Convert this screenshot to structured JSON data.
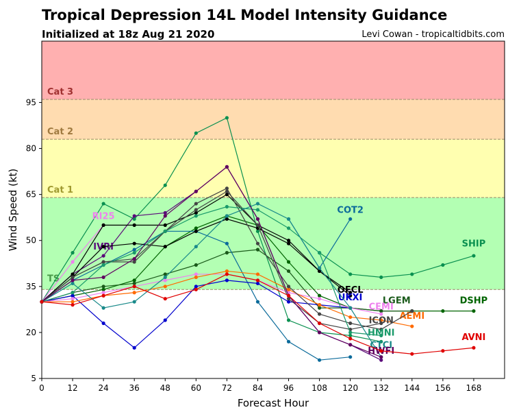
{
  "header": {
    "title": "Tropical Depression 14L Model Intensity Guidance",
    "subtitle": "Initialized at 18z Aug 21 2020",
    "credit": "Levi Cowan - tropicaltidbits.com"
  },
  "chart_data": {
    "type": "line",
    "xlabel": "Forecast Hour",
    "ylabel": "Wind Speed (kt)",
    "xlim": [
      0,
      180
    ],
    "ylim": [
      5,
      115
    ],
    "xticks": [
      0,
      12,
      24,
      36,
      48,
      60,
      72,
      84,
      96,
      108,
      120,
      132,
      144,
      156,
      168
    ],
    "yticks": [
      5,
      20,
      35,
      50,
      65,
      80,
      95
    ],
    "bands": [
      {
        "label": "",
        "from": 5,
        "to": 34,
        "color": "#ffffff",
        "label_color": "#000000"
      },
      {
        "label": "TS",
        "from": 34,
        "to": 64,
        "color": "#b3ffb3",
        "label_color": "#4a9a4a"
      },
      {
        "label": "Cat 1",
        "from": 64,
        "to": 83,
        "color": "#ffffb0",
        "label_color": "#a09a30"
      },
      {
        "label": "Cat 2",
        "from": 83,
        "to": 96,
        "color": "#ffdcb0",
        "label_color": "#a07a40"
      },
      {
        "label": "Cat 3",
        "from": 96,
        "to": 115,
        "color": "#ffb0b0",
        "label_color": "#a03030"
      }
    ],
    "series": [
      {
        "name": "SHIP",
        "color": "#0a9050",
        "x": [
          0,
          12,
          24,
          36,
          48,
          60,
          72,
          84,
          96,
          108,
          120,
          132,
          144,
          156,
          168
        ],
        "y": [
          30,
          46,
          62,
          57,
          68,
          85,
          90,
          53,
          24,
          20,
          19,
          17,
          null,
          null,
          null
        ],
        "label": {
          "x": 168,
          "y": 48
        }
      },
      {
        "name": "SHIP",
        "color": "#0a9050",
        "x": [
          108,
          120,
          132,
          144,
          156,
          168
        ],
        "y": [
          46,
          39,
          38,
          39,
          42,
          45
        ],
        "label": null
      },
      {
        "name": "DSHP",
        "color": "#006400",
        "x": [
          0,
          12,
          24,
          36,
          48,
          60,
          72,
          84,
          96,
          108,
          120,
          132,
          144,
          156,
          168
        ],
        "y": [
          30,
          32,
          34,
          37,
          48,
          54,
          58,
          55,
          43,
          32,
          28,
          27,
          27,
          27,
          27
        ],
        "label": {
          "x": 168,
          "y": 29.5
        }
      },
      {
        "name": "LGEM",
        "color": "#1a5a1a",
        "x": [
          0,
          12,
          24,
          36,
          48,
          60,
          72,
          84,
          96,
          108,
          120,
          132,
          144
        ],
        "y": [
          30,
          33,
          35,
          36,
          39,
          42,
          46,
          47,
          40,
          28,
          28,
          27,
          27
        ],
        "label": {
          "x": 138,
          "y": 29.5
        }
      },
      {
        "name": "COT2",
        "color": "#0a6a9a",
        "x": [
          0,
          12,
          24,
          36,
          48,
          60,
          72,
          84,
          96,
          108,
          120
        ],
        "y": [
          30,
          37,
          42,
          47,
          53,
          53,
          49,
          30,
          17,
          11,
          12
        ],
        "label": {
          "x": 120,
          "y": 59
        }
      },
      {
        "name": "COT2",
        "color": "#0a6a9a",
        "x": [
          96,
          108,
          120
        ],
        "y": [
          57,
          41,
          57
        ],
        "label": null
      },
      {
        "name": "RI25",
        "color": "#ee82ee",
        "x": [
          0,
          12,
          24
        ],
        "y": [
          30,
          43,
          55
        ],
        "label": {
          "x": 24,
          "y": 57
        }
      },
      {
        "name": "IVRI",
        "color": "#5a0a7a",
        "x": [
          0,
          12,
          24,
          36,
          48,
          60,
          72,
          84,
          96,
          108,
          120,
          132
        ],
        "y": [
          30,
          39,
          45,
          58,
          59,
          66,
          74,
          57,
          32,
          20,
          16,
          11
        ],
        "label": {
          "x": 24,
          "y": 47
        }
      },
      {
        "name": "OFCL",
        "color": "#000000",
        "x": [
          0,
          12,
          24,
          36,
          48,
          60,
          72,
          84,
          96,
          108,
          120
        ],
        "y": [
          30,
          39,
          55,
          55,
          55,
          59,
          65,
          55,
          50,
          40,
          33
        ],
        "label": {
          "x": 120,
          "y": 33
        }
      },
      {
        "name": "OFCL",
        "color": "#000000",
        "x": [
          0,
          12,
          24,
          36,
          48,
          60,
          72,
          84,
          96,
          108,
          120
        ],
        "y": [
          30,
          38,
          48,
          49,
          48,
          53,
          57,
          54,
          49,
          40,
          32
        ],
        "label": null
      },
      {
        "name": "UKXI",
        "color": "#0000cd",
        "x": [
          0,
          12,
          24,
          36,
          48,
          60,
          72,
          84,
          96,
          108,
          120
        ],
        "y": [
          30,
          32,
          23,
          15,
          24,
          35,
          37,
          36,
          30,
          29,
          28
        ],
        "label": {
          "x": 120,
          "y": 30.5
        }
      },
      {
        "name": "CEMI",
        "color": "#ee82ee",
        "x": [
          0,
          12,
          24,
          36,
          48,
          60,
          72,
          84,
          96,
          108,
          120,
          132
        ],
        "y": [
          30,
          31,
          33,
          35,
          37,
          39,
          39,
          37,
          33,
          31,
          28,
          26
        ],
        "label": {
          "x": 132,
          "y": 27.5
        }
      },
      {
        "name": "AEMI",
        "color": "#ff6a00",
        "x": [
          0,
          12,
          24,
          36,
          48,
          60,
          72,
          84,
          96,
          108,
          120,
          132,
          144
        ],
        "y": [
          30,
          30,
          32,
          33,
          35,
          38,
          40,
          39,
          34,
          29,
          25,
          24,
          22
        ],
        "label": {
          "x": 144,
          "y": 24.5
        }
      },
      {
        "name": "ICON",
        "color": "#444444",
        "x": [
          0,
          12,
          24,
          36,
          48,
          60,
          72,
          84,
          96,
          108,
          120,
          132,
          144
        ],
        "y": [
          30,
          38,
          43,
          43,
          53,
          62,
          67,
          49,
          35,
          26,
          23,
          21,
          27
        ],
        "label": {
          "x": 132,
          "y": 23
        }
      },
      {
        "name": "ICON",
        "color": "#444444",
        "x": [
          0,
          12,
          24,
          36,
          48,
          60,
          72,
          84,
          96,
          108,
          120,
          132
        ],
        "y": [
          30,
          38,
          43,
          44,
          53,
          60,
          66,
          55,
          31,
          23,
          21,
          23
        ],
        "label": null
      },
      {
        "name": "HMNI",
        "color": "#1a9a6a",
        "x": [
          0,
          12,
          24,
          36,
          48,
          60,
          72,
          84,
          96,
          108,
          120,
          132
        ],
        "y": [
          30,
          33,
          42,
          46,
          53,
          58,
          61,
          60,
          54,
          46,
          20,
          19
        ],
        "label": {
          "x": 132,
          "y": 19
        }
      },
      {
        "name": "CTCI",
        "color": "#1a8a8a",
        "x": [
          0,
          12,
          24,
          36,
          48,
          60,
          72,
          84,
          96,
          108,
          120,
          132
        ],
        "y": [
          30,
          36,
          28,
          30,
          38,
          48,
          58,
          62,
          57,
          41,
          28,
          12
        ],
        "label": {
          "x": 132,
          "y": 15
        }
      },
      {
        "name": "HWFI",
        "color": "#600060",
        "x": [
          0,
          12,
          24,
          36,
          48,
          60,
          72,
          84,
          96,
          108,
          120,
          132
        ],
        "y": [
          30,
          37,
          38,
          44,
          58,
          66,
          74,
          57,
          32,
          20,
          16,
          12
        ],
        "label": {
          "x": 132,
          "y": 13
        }
      },
      {
        "name": "AVNI",
        "color": "#e00000",
        "x": [
          0,
          12,
          24,
          36,
          48,
          60,
          72,
          84,
          96,
          108,
          120,
          132,
          144,
          156,
          168
        ],
        "y": [
          30,
          29,
          32,
          35,
          31,
          34,
          39,
          37,
          32,
          23,
          18,
          14,
          13,
          14,
          15
        ],
        "label": {
          "x": 168,
          "y": 17.5
        }
      }
    ]
  }
}
